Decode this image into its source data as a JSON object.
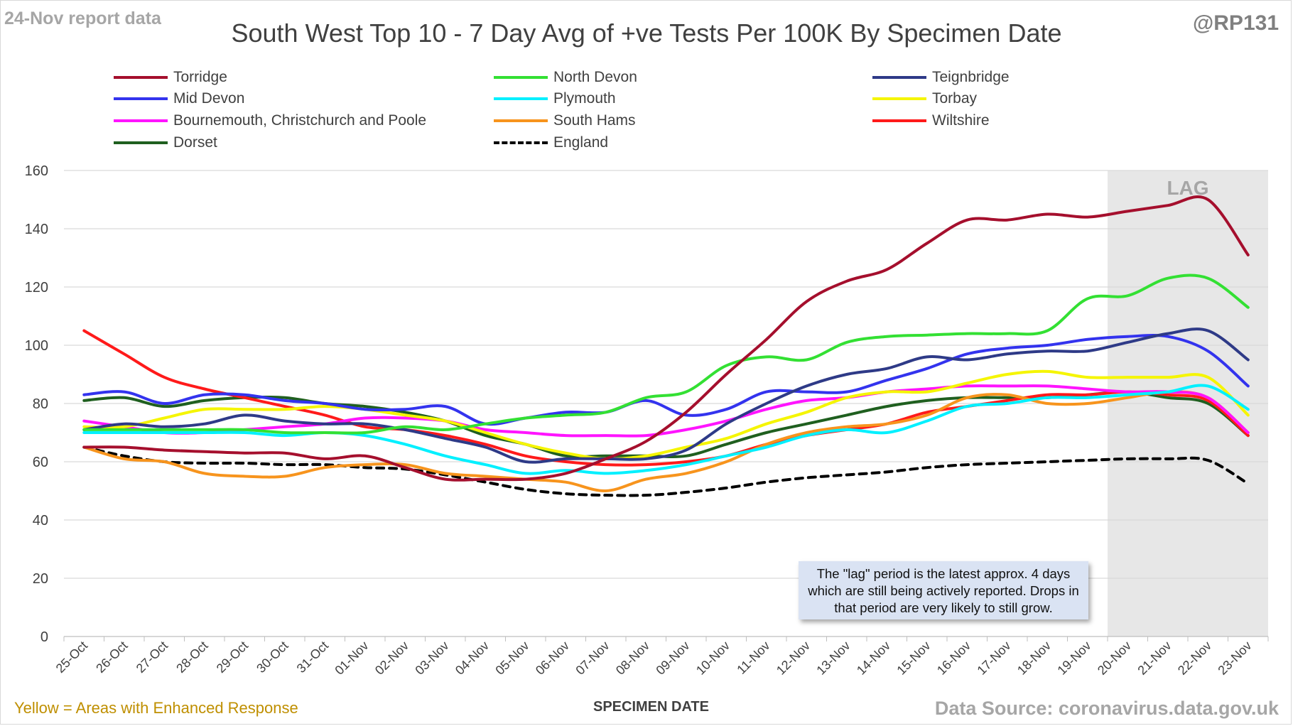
{
  "header": {
    "report_label": "24-Nov report data",
    "handle": "@RP131"
  },
  "footer": {
    "footnote": "Yellow = Areas with Enhanced Response",
    "source": "Data Source: coronavirus.data.gov.uk"
  },
  "annotation": {
    "lag_label": "LAG",
    "lag_note": "The \"lag\" period is the latest approx. 4 days which are still being actively reported. Drops in that period are very likely to still grow."
  },
  "chart_data": {
    "type": "line",
    "title": "South West Top 10 - 7 Day Avg of +ve Tests Per 100K By Specimen Date",
    "xlabel": "SPECIMEN DATE",
    "ylabel": "",
    "ylim": [
      0,
      160
    ],
    "yticks": [
      0,
      20,
      40,
      60,
      80,
      100,
      120,
      140,
      160
    ],
    "grid": "horizontal",
    "legend_position": "top",
    "lag_range": [
      "20-Nov",
      "23-Nov"
    ],
    "categories": [
      "25-Oct",
      "26-Oct",
      "27-Oct",
      "28-Oct",
      "29-Oct",
      "30-Oct",
      "31-Oct",
      "01-Nov",
      "02-Nov",
      "03-Nov",
      "04-Nov",
      "05-Nov",
      "06-Nov",
      "07-Nov",
      "08-Nov",
      "09-Nov",
      "10-Nov",
      "11-Nov",
      "12-Nov",
      "13-Nov",
      "14-Nov",
      "15-Nov",
      "16-Nov",
      "17-Nov",
      "18-Nov",
      "19-Nov",
      "20-Nov",
      "21-Nov",
      "22-Nov",
      "23-Nov"
    ],
    "series": [
      {
        "name": "Torridge",
        "color": "#a50f2d",
        "dash": false,
        "values": [
          65,
          65,
          64,
          63.5,
          63,
          63,
          61,
          62,
          58,
          54,
          54,
          54,
          56,
          61,
          67,
          77,
          90,
          102,
          115,
          122,
          126,
          135,
          143,
          143,
          145,
          144,
          146,
          148,
          150,
          131
        ]
      },
      {
        "name": "North Devon",
        "color": "#33e033",
        "dash": false,
        "values": [
          71,
          71,
          71,
          71,
          71,
          70,
          70,
          70,
          72,
          71,
          73,
          75,
          76,
          77,
          82,
          84,
          93,
          96,
          95,
          101,
          103,
          103.5,
          104,
          104,
          105,
          116,
          117,
          123,
          123,
          113
        ]
      },
      {
        "name": "Teignbridge",
        "color": "#2e3a87",
        "dash": false,
        "values": [
          71,
          73,
          72,
          73,
          76,
          74,
          73,
          73,
          71,
          68,
          65,
          60,
          61,
          61,
          61,
          64,
          73,
          80,
          86,
          90,
          92,
          96,
          95,
          97,
          98,
          98,
          101,
          104,
          105,
          95
        ]
      },
      {
        "name": "Mid Devon",
        "color": "#3333ee",
        "dash": false,
        "values": [
          83,
          84,
          80,
          83,
          83,
          81,
          80,
          78,
          78,
          79,
          73,
          75,
          77,
          77,
          81,
          76,
          78,
          84,
          84,
          84,
          88,
          92,
          97,
          99,
          100,
          102,
          103,
          103,
          98,
          86
        ]
      },
      {
        "name": "Plymouth",
        "color": "#00f0ff",
        "dash": false,
        "values": [
          70,
          70,
          70,
          70,
          70,
          69,
          70,
          69,
          66,
          62,
          59,
          56,
          57,
          56,
          57,
          59,
          62,
          65,
          69,
          71,
          70,
          74,
          79,
          80,
          82,
          82,
          83,
          84,
          86,
          78
        ]
      },
      {
        "name": "Torbay",
        "color": "#f5f500",
        "dash": false,
        "values": [
          72,
          72,
          75,
          78,
          78,
          78,
          79,
          78,
          76,
          74,
          70,
          66,
          63,
          61,
          62,
          65,
          68,
          73,
          77,
          82,
          84,
          84,
          87,
          90,
          91,
          89,
          89,
          89,
          89,
          76
        ]
      },
      {
        "name": "Bournemouth, Christchurch and Poole",
        "color": "#ff14ff",
        "dash": false,
        "values": [
          74,
          72,
          70,
          70,
          71,
          72,
          73,
          75,
          75,
          74,
          71,
          70,
          69,
          69,
          69,
          71,
          74,
          78,
          81,
          82,
          84,
          85,
          86,
          86,
          86,
          85,
          84,
          84,
          82,
          70
        ]
      },
      {
        "name": "South Hams",
        "color": "#f7941d",
        "dash": false,
        "values": [
          65,
          61,
          60,
          56,
          55,
          55,
          58,
          59,
          59,
          56,
          55,
          54,
          53,
          50,
          54,
          56,
          60,
          66,
          70,
          72,
          73,
          76,
          82,
          83,
          80,
          80,
          82,
          84,
          82,
          70
        ]
      },
      {
        "name": "Wiltshire",
        "color": "#ff1a1a",
        "dash": false,
        "values": [
          105,
          97,
          89,
          85,
          82,
          79,
          76,
          72,
          71,
          69,
          66,
          62,
          60,
          59,
          59,
          60,
          62,
          66,
          69,
          71,
          73,
          77,
          79,
          81,
          83,
          83,
          84,
          83,
          81,
          69
        ]
      },
      {
        "name": "Dorset",
        "color": "#1f5f1f",
        "dash": false,
        "values": [
          81,
          82,
          79,
          81,
          82,
          82,
          80,
          79,
          77,
          74,
          69,
          66,
          62,
          62,
          62,
          62,
          66,
          70,
          73,
          76,
          79,
          81,
          82,
          82,
          82,
          83,
          84,
          82,
          80,
          69
        ]
      },
      {
        "name": "England",
        "color": "#000000",
        "dash": true,
        "values": [
          65,
          62,
          60,
          59.5,
          59.5,
          59,
          59,
          58,
          57.5,
          55.5,
          53,
          50.5,
          49,
          48.5,
          48.5,
          49.5,
          51,
          53,
          54.5,
          55.5,
          56.5,
          58,
          59,
          59.5,
          60,
          60.5,
          61,
          61,
          60.5,
          52.5
        ]
      }
    ]
  }
}
